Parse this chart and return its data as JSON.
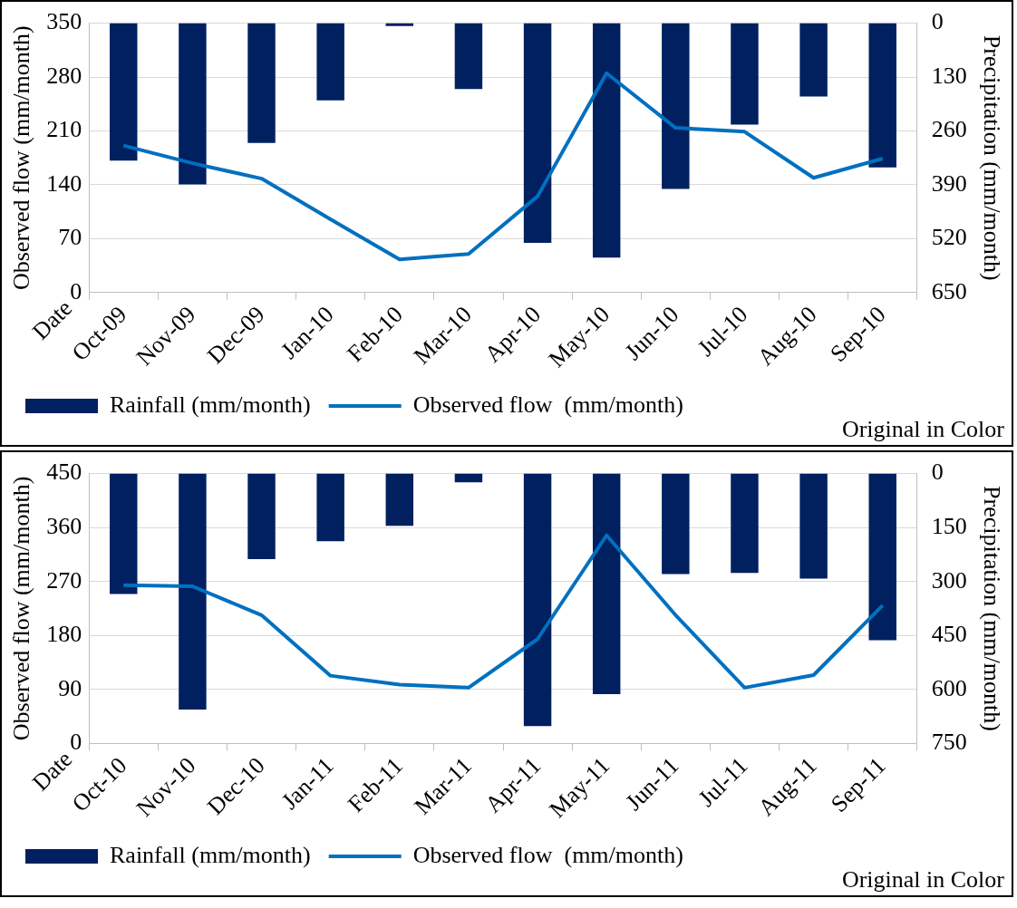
{
  "chart_data": [
    {
      "type": "bar",
      "xlabel": "Date",
      "ylabel": "Observed flow (mm/month)",
      "y2label": "Precipitation (mm/month)",
      "categories": [
        "Oct-09",
        "Nov-09",
        "Dec-09",
        "Jan-10",
        "Feb-10",
        "Mar-10",
        "Apr-10",
        "May-10",
        "Jun-10",
        "Jul-10",
        "Aug-10",
        "Sep-10"
      ],
      "series": [
        {
          "name": "Rainfall (mm/month)",
          "axis": "y2",
          "color": "#002060",
          "values": [
            332,
            389,
            289,
            186,
            7,
            159,
            530,
            566,
            400,
            245,
            177,
            348
          ]
        },
        {
          "name": "Observed flow  (mm/month)",
          "type": "line",
          "color": "#0070c0",
          "values": [
            191,
            168,
            148,
            95,
            43,
            50,
            125,
            285,
            214,
            209,
            149,
            174
          ]
        }
      ],
      "ylim": [
        0,
        350
      ],
      "yticks": [
        0,
        70,
        140,
        210,
        280,
        350
      ],
      "y2lim": [
        650,
        0
      ],
      "y2ticks": [
        0,
        130,
        260,
        390,
        520,
        650
      ],
      "grid": "y",
      "legend": "bottom",
      "annotations": [
        "Original in Color"
      ]
    },
    {
      "type": "bar",
      "xlabel": "Date",
      "ylabel": "Observed flow (mm/month)",
      "y2label": "Precipitation (mm/month)",
      "categories": [
        "Oct-10",
        "Nov-10",
        "Dec-10",
        "Jan-11",
        "Feb-11",
        "Mar-11",
        "Apr-11",
        "May-11",
        "Jun-11",
        "Jul-11",
        "Aug-11",
        "Sep-11"
      ],
      "series": [
        {
          "name": "Rainfall (mm/month)",
          "axis": "y2",
          "color": "#002060",
          "values": [
            335,
            656,
            238,
            188,
            145,
            24,
            702,
            613,
            279,
            276,
            292,
            463
          ]
        },
        {
          "name": "Observed flow  (mm/month)",
          "type": "line",
          "color": "#0070c0",
          "values": [
            264,
            262,
            214,
            113,
            98,
            93,
            174,
            347,
            214,
            93,
            114,
            230
          ]
        }
      ],
      "ylim": [
        0,
        450
      ],
      "yticks": [
        0,
        90,
        180,
        270,
        360,
        450
      ],
      "y2lim": [
        750,
        0
      ],
      "y2ticks": [
        0,
        150,
        300,
        450,
        600,
        750
      ],
      "grid": "y",
      "legend": "bottom",
      "annotations": [
        "Original in Color"
      ]
    }
  ]
}
